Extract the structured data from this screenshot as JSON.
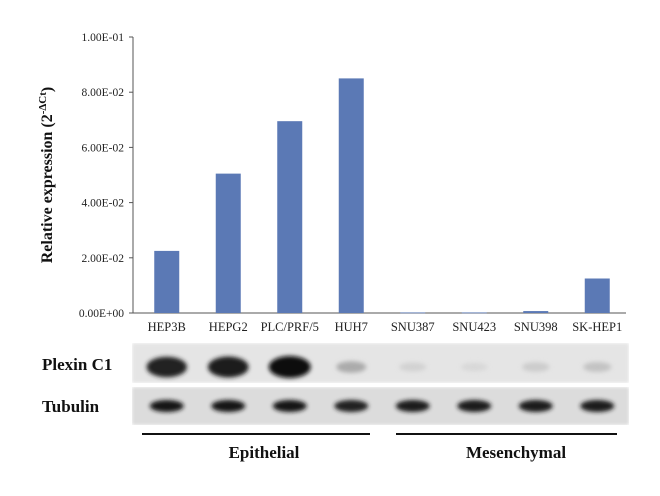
{
  "chart_data": {
    "type": "bar",
    "ylabel": "Relative expression (2",
    "ylabel_sup": "-ΔCt",
    "ylabel_close": ")",
    "ylim": [
      0,
      0.1
    ],
    "yticks": [
      {
        "value": 0.0,
        "label": "0.00E+00"
      },
      {
        "value": 0.02,
        "label": "2.00E-02"
      },
      {
        "value": 0.04,
        "label": "4.00E-02"
      },
      {
        "value": 0.06,
        "label": "6.00E-02"
      },
      {
        "value": 0.08,
        "label": "8.00E-02"
      },
      {
        "value": 0.1,
        "label": "1.00E-01"
      }
    ],
    "categories": [
      "HEP3B",
      "HEPG2",
      "PLC/PRF/5",
      "HUH7",
      "SNU387",
      "SNU423",
      "SNU398",
      "SK-HEP1"
    ],
    "values": [
      0.0225,
      0.0505,
      0.0695,
      0.085,
      0.0002,
      0.0002,
      0.0007,
      0.0125
    ],
    "bar_color": "#5b79b5",
    "grid": false
  },
  "blot": {
    "rows": [
      {
        "label": "Plexin C1",
        "intensities": [
          0.9,
          0.92,
          1.0,
          0.25,
          0.07,
          0.04,
          0.1,
          0.14
        ]
      },
      {
        "label": "Tubulin",
        "intensities": [
          0.95,
          0.95,
          0.95,
          0.9,
          0.92,
          0.92,
          0.92,
          0.92
        ]
      }
    ],
    "groups": [
      {
        "label": "Epithelial"
      },
      {
        "label": "Mesenchymal"
      }
    ]
  }
}
